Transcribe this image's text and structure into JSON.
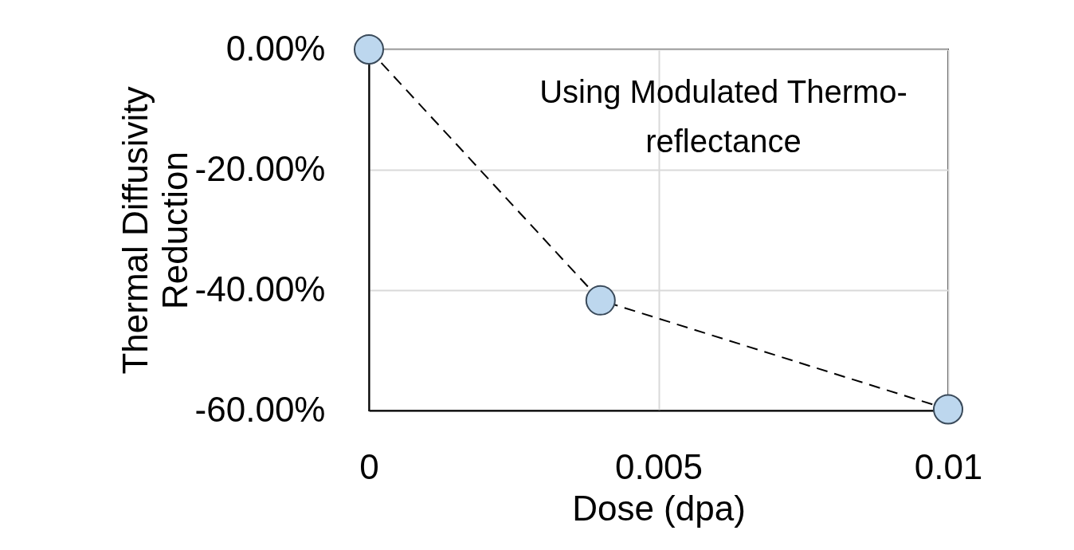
{
  "chart_data": {
    "type": "line",
    "xlabel": "Dose (dpa)",
    "ylabel": "Thermal Diffusivity Reduction",
    "x": [
      0,
      0.004,
      0.01
    ],
    "series": [
      {
        "color": "#bdd7ee",
        "values": [
          0,
          -41.7,
          -59.8
        ]
      }
    ],
    "xlim": [
      0,
      0.01
    ],
    "xticks": [
      0,
      0.005,
      0.01
    ],
    "ylim": [
      -60,
      0
    ],
    "yticks": [
      {
        "value": -60,
        "label": "-60.00%"
      },
      {
        "value": -40,
        "label": "-40.00%"
      },
      {
        "value": -20,
        "label": "-20.00%"
      },
      {
        "value": 0,
        "label": "0.00%"
      }
    ],
    "grid": true,
    "marker": "circle",
    "line_style": "dashed",
    "annotations": [
      "Using Modulated Thermo-reflectance"
    ]
  }
}
